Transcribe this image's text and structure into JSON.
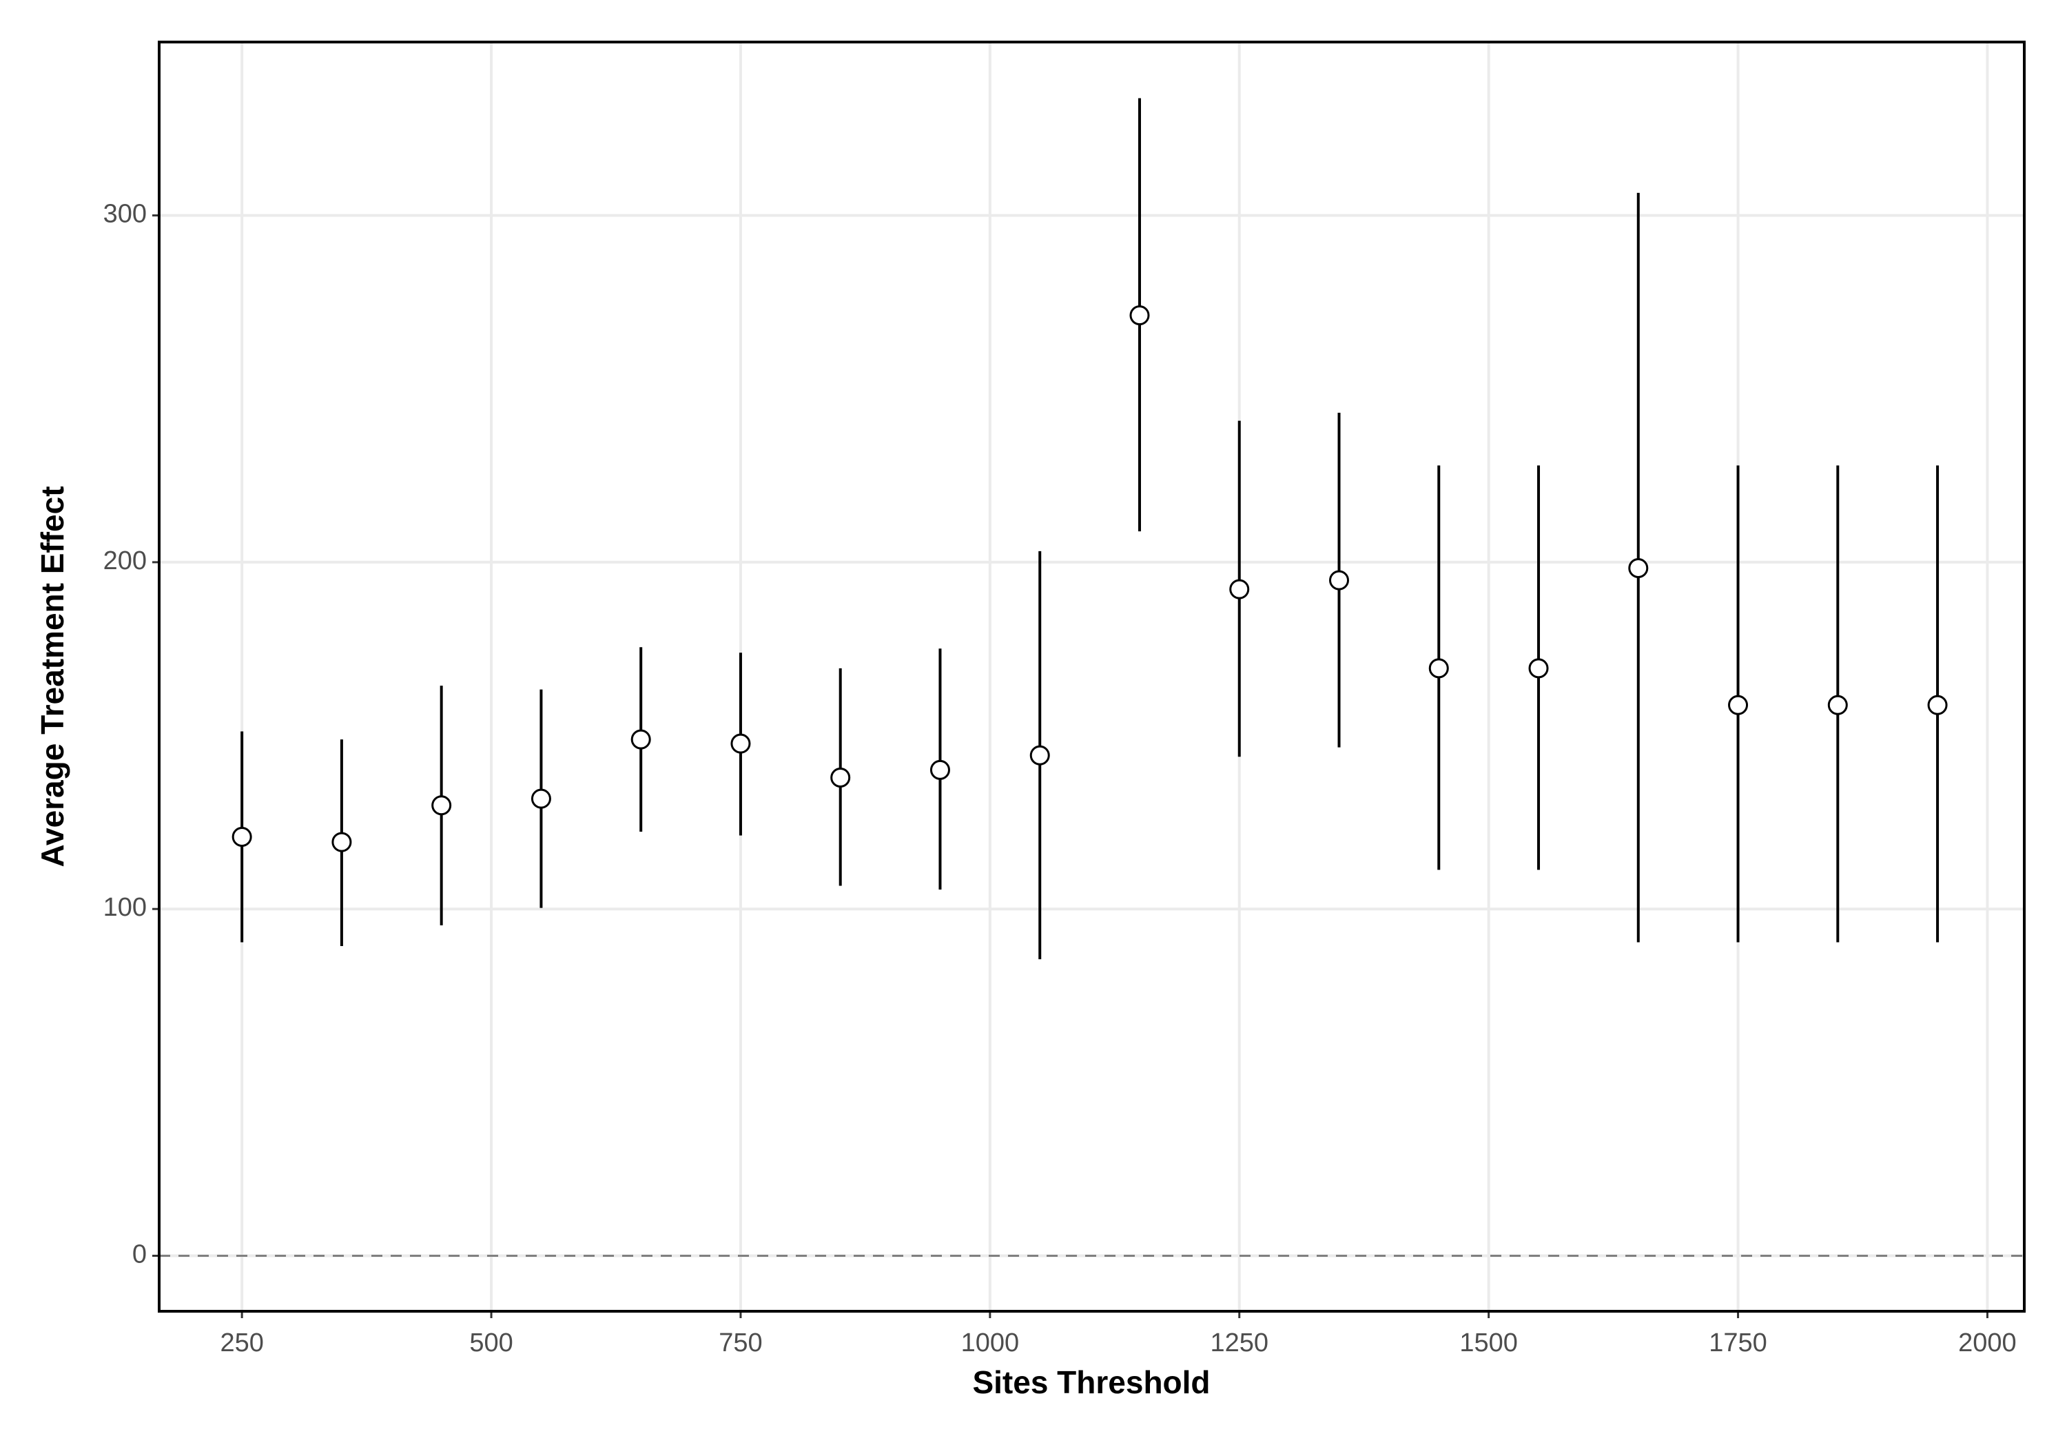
{
  "chart_data": {
    "type": "errorbar",
    "x_label": "Sites Threshold",
    "y_label": "Average Treatment Effect",
    "x": [
      250,
      350,
      450,
      550,
      650,
      750,
      850,
      950,
      1050,
      1150,
      1250,
      1350,
      1450,
      1550,
      1650,
      1750,
      1850,
      1950
    ],
    "series": [
      {
        "color": "#000000",
        "values": [
          120.8,
          119.3,
          129.9,
          131.8,
          148.9,
          147.7,
          137.9,
          140.1,
          144.3,
          271.2,
          192.2,
          194.8,
          169.4,
          169.4,
          198.3,
          158.8,
          158.8,
          158.8
        ],
        "lower": [
          90.4,
          89.3,
          95.3,
          100.3,
          122.3,
          121.2,
          106.7,
          105.6,
          85.5,
          208.9,
          143.9,
          146.6,
          111.3,
          111.3,
          90.4,
          90.4,
          90.4,
          90.4
        ],
        "upper": [
          151.2,
          148.9,
          164.4,
          163.3,
          175.5,
          173.9,
          169.4,
          175.1,
          203.2,
          333.8,
          240.8,
          243.1,
          227.9,
          227.9,
          306.5,
          227.9,
          227.9,
          227.9
        ]
      }
    ],
    "hline": 0,
    "xlim": [
      167,
      2037
    ],
    "ylim": [
      -16,
      350
    ],
    "xticks": [
      250,
      500,
      750,
      1000,
      1250,
      1500,
      1750,
      2000
    ],
    "yticks": [
      0,
      100,
      200,
      300
    ],
    "grid": true
  }
}
